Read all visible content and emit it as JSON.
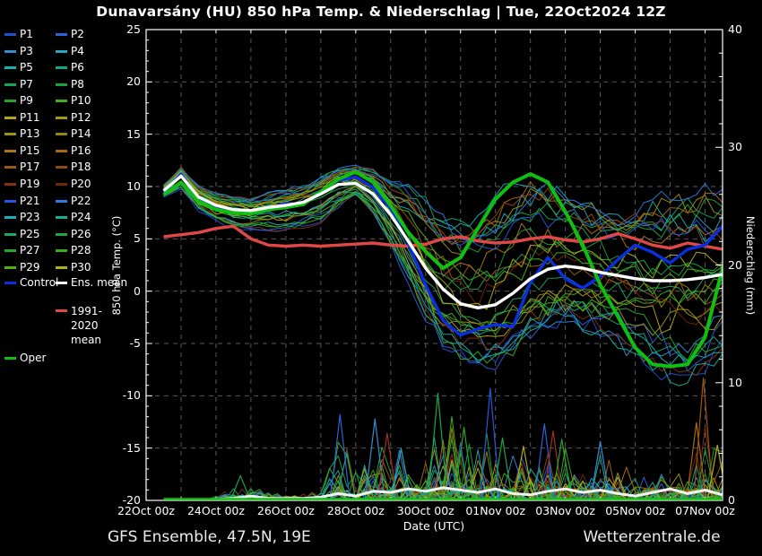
{
  "title": "Dunavarsány  (HU)  850 hPa Temp. & Niederschlag | Tue, 22Oct2024 12Z",
  "footer": {
    "left": "GFS Ensemble, 47.5N, 19E",
    "right": "Wetterzentrale.de"
  },
  "axes": {
    "left": {
      "label": "850 hPa Temp. (°C)",
      "ticks": [
        25,
        20,
        15,
        10,
        5,
        0,
        -5,
        -10,
        -15,
        -20
      ],
      "range": [
        -20,
        25
      ]
    },
    "right": {
      "label": "Niederschlag (mm)",
      "ticks": [
        40,
        30,
        20,
        10,
        0
      ],
      "range": [
        0,
        40
      ]
    },
    "x": {
      "label": "Date (UTC)",
      "tick_labels": [
        "22Oct 00z",
        "24Oct 00z",
        "26Oct 00z",
        "28Oct 00z",
        "30Oct 00z",
        "01Nov 00z",
        "03Nov 00z",
        "05Nov 00z",
        "07Nov 00z"
      ],
      "tick_days": [
        0,
        2,
        4,
        6,
        8,
        10,
        12,
        14,
        16
      ],
      "range_days": [
        0,
        16.5
      ]
    }
  },
  "legend": {
    "members": [
      {
        "label": "P1",
        "color": "#2050d0"
      },
      {
        "label": "P2",
        "color": "#2b63d8"
      },
      {
        "label": "P3",
        "color": "#2f8fd0"
      },
      {
        "label": "P4",
        "color": "#25a6c4"
      },
      {
        "label": "P5",
        "color": "#10b2ae"
      },
      {
        "label": "P6",
        "color": "#0fa886"
      },
      {
        "label": "P7",
        "color": "#12a55c"
      },
      {
        "label": "P8",
        "color": "#18a13e"
      },
      {
        "label": "P9",
        "color": "#2aa428"
      },
      {
        "label": "P10",
        "color": "#44ad1c"
      },
      {
        "label": "P11",
        "color": "#b2a614"
      },
      {
        "label": "P12",
        "color": "#a89a10"
      },
      {
        "label": "P13",
        "color": "#a18f0e"
      },
      {
        "label": "P14",
        "color": "#97850c"
      },
      {
        "label": "P15",
        "color": "#b07516"
      },
      {
        "label": "P16",
        "color": "#a86810"
      },
      {
        "label": "P17",
        "color": "#9e5812"
      },
      {
        "label": "P18",
        "color": "#94470e"
      },
      {
        "label": "P19",
        "color": "#87300f"
      },
      {
        "label": "P20",
        "color": "#76230c"
      },
      {
        "label": "P21",
        "color": "#2357dd"
      },
      {
        "label": "P22",
        "color": "#2d7ce2"
      },
      {
        "label": "P23",
        "color": "#18aebe"
      },
      {
        "label": "P24",
        "color": "#14b196"
      },
      {
        "label": "P25",
        "color": "#18aa66"
      },
      {
        "label": "P26",
        "color": "#1ca646"
      },
      {
        "label": "P27",
        "color": "#28a52c"
      },
      {
        "label": "P28",
        "color": "#38ae1e"
      },
      {
        "label": "P29",
        "color": "#4cb214"
      },
      {
        "label": "P30",
        "color": "#b3b012"
      }
    ],
    "extras": [
      {
        "label": "Control",
        "color": "#0a2fe0"
      },
      {
        "label": "Ens. mean",
        "color": "#ffffff"
      },
      {
        "label": "1991-2020 mean",
        "color": "#e04848"
      },
      {
        "label": "Oper",
        "color": "#10c010"
      }
    ]
  },
  "chart_data": {
    "type": "line",
    "title": "Dunavarsány (HU) 850 hPa Temp. & Niederschlag, GFS Ensemble run Tue 22Oct2024 12Z",
    "xlabel": "Date (UTC)",
    "ylabel_left": "850 hPa Temp. (°C)",
    "ylabel_right": "Niederschlag (mm)",
    "ylim_temp": [
      -20,
      25
    ],
    "ylim_precip": [
      0,
      40
    ],
    "grid": {
      "h_step_c": 5,
      "v_step_days": 1,
      "style": "dashed"
    },
    "legend_position": "outside-left",
    "x_unit": "days since 22Oct2024 00 UTC",
    "days": [
      0.5,
      1,
      1.5,
      2,
      2.5,
      3,
      3.5,
      4,
      4.5,
      5,
      5.5,
      6,
      6.5,
      7,
      7.5,
      8,
      8.5,
      9,
      9.5,
      10,
      10.5,
      11,
      11.5,
      12,
      12.5,
      13,
      13.5,
      14,
      14.5,
      15,
      15.5,
      16,
      16.5
    ],
    "series": [
      {
        "name": "Ens. mean",
        "color": "#ffffff",
        "width": 3.4,
        "values": [
          9.6,
          11.0,
          9.0,
          8.2,
          7.8,
          7.7,
          8.0,
          8.2,
          8.5,
          9.3,
          10.2,
          10.3,
          9.3,
          7.3,
          4.8,
          2.2,
          0.2,
          -1.2,
          -1.6,
          -1.3,
          -0.2,
          1.2,
          2.1,
          2.4,
          2.2,
          1.8,
          1.5,
          1.2,
          1.0,
          1.0,
          1.1,
          1.3,
          1.6
        ]
      },
      {
        "name": "Control",
        "color": "#0a2fe0",
        "width": 3.4,
        "values": [
          9.4,
          11.2,
          8.8,
          8.0,
          7.6,
          7.5,
          7.9,
          8.4,
          8.3,
          9.6,
          10.6,
          10.9,
          9.9,
          7.9,
          4.6,
          0.6,
          -2.8,
          -4.2,
          -3.6,
          -3.2,
          -3.4,
          0.8,
          3.2,
          1.2,
          0.3,
          1.4,
          3.0,
          4.4,
          3.7,
          2.7,
          4.0,
          4.4,
          6.2
        ]
      },
      {
        "name": "Oper",
        "color": "#10c010",
        "width": 4,
        "values": [
          9.2,
          10.4,
          8.6,
          7.8,
          7.5,
          7.4,
          7.8,
          8.0,
          8.3,
          9.5,
          10.7,
          11.4,
          10.4,
          8.2,
          5.6,
          3.8,
          2.2,
          3.2,
          6.0,
          8.8,
          10.4,
          11.2,
          10.4,
          7.6,
          4.4,
          0.6,
          -2.4,
          -5.4,
          -7.0,
          -7.2,
          -7.0,
          -4.4,
          2.2
        ]
      },
      {
        "name": "1991-2020 mean",
        "color": "#e04848",
        "width": 3.4,
        "values": [
          5.2,
          5.4,
          5.6,
          6.0,
          6.2,
          5.0,
          4.4,
          4.3,
          4.4,
          4.3,
          4.4,
          4.5,
          4.6,
          4.4,
          4.3,
          4.5,
          5.0,
          5.2,
          4.8,
          4.6,
          4.7,
          5.0,
          5.2,
          4.9,
          4.7,
          5.0,
          5.5,
          5.0,
          4.4,
          4.1,
          4.6,
          4.3,
          4.0
        ]
      }
    ],
    "ensemble_envelope": {
      "lo": [
        9.0,
        9.8,
        7.8,
        6.8,
        6.2,
        6.0,
        5.9,
        5.9,
        6.2,
        6.8,
        8.2,
        9.2,
        7.6,
        4.6,
        1.4,
        -2.2,
        -4.8,
        -5.6,
        -6.2,
        -6.6,
        -5.4,
        -4.2,
        -3.6,
        -3.4,
        -3.8,
        -4.4,
        -4.6,
        -5.6,
        -6.8,
        -7.6,
        -7.4,
        -6.4,
        -5.2
      ],
      "hi": [
        10.2,
        11.8,
        10.0,
        9.4,
        9.0,
        8.8,
        9.2,
        9.6,
        9.8,
        10.6,
        11.6,
        11.8,
        11.4,
        10.2,
        9.4,
        8.4,
        7.2,
        6.4,
        6.6,
        8.2,
        9.4,
        10.6,
        10.2,
        9.4,
        8.8,
        8.4,
        8.2,
        8.0,
        8.2,
        8.6,
        8.8,
        8.8,
        8.6
      ]
    },
    "precip": {
      "mean": [
        0,
        0,
        0,
        0,
        0.1,
        0.3,
        0.1,
        0.1,
        0.1,
        0.2,
        0.5,
        0.3,
        0.7,
        0.6,
        0.9,
        0.7,
        1.0,
        0.8,
        0.6,
        0.9,
        0.5,
        0.4,
        0.7,
        0.9,
        0.6,
        0.8,
        0.5,
        0.3,
        0.6,
        0.9,
        0.5,
        0.8,
        0.4
      ],
      "member_max": [
        0.2,
        0.3,
        0.2,
        0.4,
        1.2,
        2.2,
        0.8,
        0.6,
        0.8,
        1.2,
        7.4,
        3.2,
        7.0,
        5.8,
        4.2,
        5.2,
        9.2,
        7.2,
        6.0,
        9.6,
        5.6,
        5.0,
        6.6,
        6.0,
        3.4,
        5.2,
        3.6,
        3.4,
        2.4,
        2.8,
        4.4,
        10.4,
        4.8
      ],
      "featured_spikes": [
        {
          "day": 2.7,
          "mm": 2.1,
          "color": "#18a13e"
        },
        {
          "day": 5.55,
          "mm": 7.3,
          "color": "#2b63d8"
        },
        {
          "day": 6.55,
          "mm": 6.9,
          "color": "#2f8fd0"
        },
        {
          "day": 6.9,
          "mm": 5.7,
          "color": "#a03024"
        },
        {
          "day": 7.3,
          "mm": 4.4,
          "color": "#18aebe"
        },
        {
          "day": 8.35,
          "mm": 9.1,
          "color": "#1ca646"
        },
        {
          "day": 9.1,
          "mm": 6.2,
          "color": "#2aa428"
        },
        {
          "day": 9.85,
          "mm": 9.5,
          "color": "#2357dd"
        },
        {
          "day": 10.2,
          "mm": 5.3,
          "color": "#1ca646"
        },
        {
          "day": 10.8,
          "mm": 4.6,
          "color": "#b2a614"
        },
        {
          "day": 11.4,
          "mm": 6.5,
          "color": "#2b63d8"
        },
        {
          "day": 11.65,
          "mm": 5.9,
          "color": "#a03024"
        },
        {
          "day": 11.9,
          "mm": 5.2,
          "color": "#28a52c"
        },
        {
          "day": 13.0,
          "mm": 5.0,
          "color": "#2f8fd0"
        },
        {
          "day": 15.75,
          "mm": 6.6,
          "color": "#a86810"
        },
        {
          "day": 15.95,
          "mm": 10.4,
          "color": "#9e5812"
        },
        {
          "day": 16.35,
          "mm": 4.7,
          "color": "#b3b012"
        }
      ]
    },
    "plot_colors": {
      "frame": "#ffffff",
      "grid": "#5a5a5a",
      "background": "#000000"
    }
  }
}
